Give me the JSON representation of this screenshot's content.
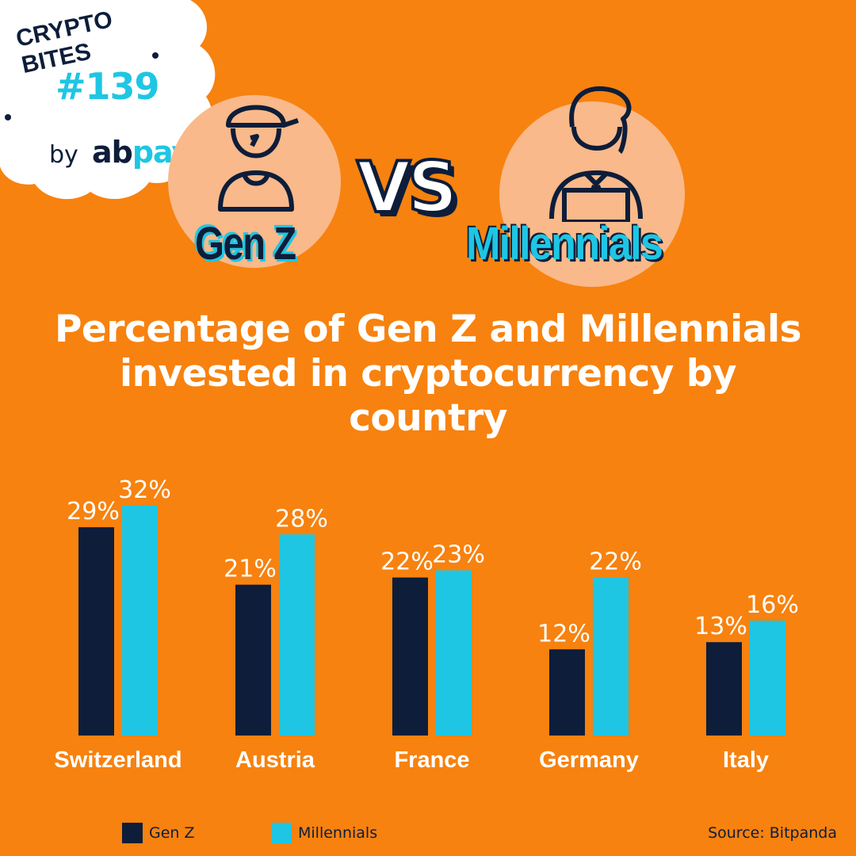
{
  "badge": {
    "title": "CRYPTO BITES",
    "number": "#139",
    "by": "by",
    "brand_a": "ab",
    "brand_b": "pay"
  },
  "header": {
    "left_label": "Gen Z",
    "vs": "VS",
    "right_label": "Millennials"
  },
  "icons": {
    "left": "gen-z-person-icon",
    "right": "millennial-laptop-person-icon"
  },
  "colors": {
    "background": "#f7820f",
    "gen_z": "#0d1d3a",
    "millennials": "#1ec6e3"
  },
  "chart_data": {
    "type": "bar",
    "title": "Percentage of Gen Z and Millennials invested in cryptocurrency by country",
    "categories": [
      "Switzerland",
      "Austria",
      "France",
      "Germany",
      "Italy"
    ],
    "series": [
      {
        "name": "Gen Z",
        "values": [
          29,
          21,
          22,
          12,
          13
        ],
        "labels": [
          "29%",
          "21%",
          "22%",
          "12%",
          "13%"
        ]
      },
      {
        "name": "Millennials",
        "values": [
          32,
          28,
          23,
          22,
          16
        ],
        "labels": [
          "32%",
          "28%",
          "23%",
          "22%",
          "16%"
        ]
      }
    ],
    "ylim": [
      0,
      32
    ],
    "grid": false,
    "legend": "bottom-left"
  },
  "legend": {
    "gen_z": "Gen Z",
    "millennials": "Millennials"
  },
  "source": "Source: Bitpanda"
}
